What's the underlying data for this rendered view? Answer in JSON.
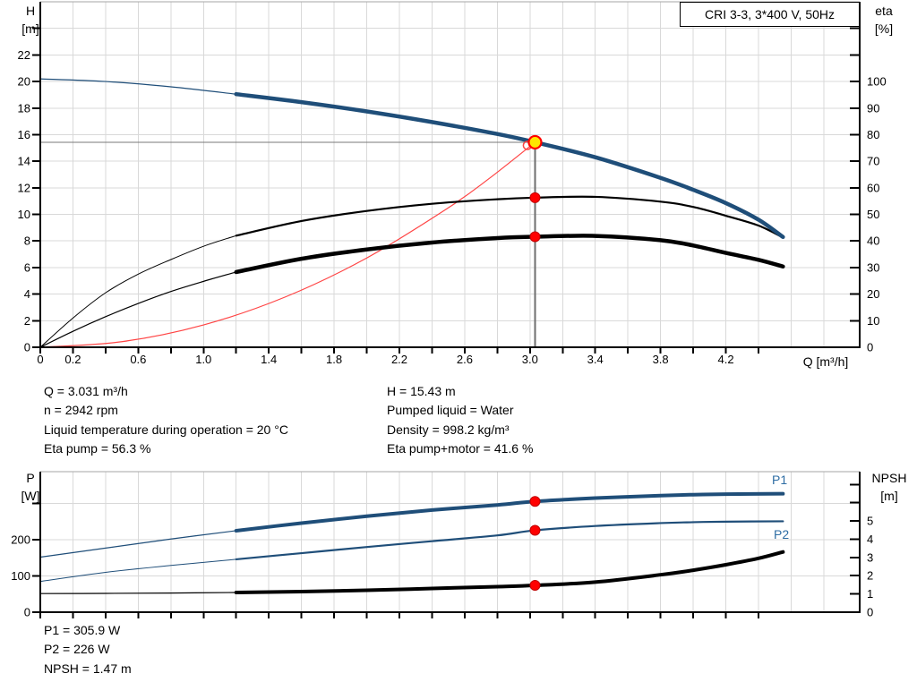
{
  "header": {
    "model_box": "CRI 3-3, 3*400 V, 50Hz"
  },
  "info_top": {
    "left": [
      "Q = 3.031 m³/h",
      "n = 2942 rpm",
      "Liquid temperature during operation = 20 °C",
      "Eta pump = 56.3 %"
    ],
    "right": [
      "H = 15.43 m",
      "Pumped liquid = Water",
      "Density = 998.2 kg/m³",
      "Eta pump+motor = 41.6 %"
    ]
  },
  "info_bottom": [
    "P1 = 305.9 W",
    "P2 = 226 W",
    "NPSH = 1.47 m"
  ],
  "colors": {
    "curve_blue": "#1F4E79",
    "curve_black": "#000000",
    "system_red": "#ff4444",
    "dot_red": "#ff0000",
    "dot_red_rim": "#c00000",
    "dot_yellow": "#ffe600",
    "duty_guides": "#787878",
    "duty_guide_vertical": "#6e6e6e",
    "grid": "#d9d9d9",
    "frame": "#a6a6a6",
    "axis": "#000000",
    "label_blue": "#2e6da4"
  },
  "chart_data": [
    {
      "type": "line",
      "name": "hq-eta-chart",
      "title_box": "CRI 3-3, 3*400 V, 50Hz",
      "x_axis": {
        "label": "Q [m³/h]",
        "min": 0,
        "max": 5.02,
        "ticks": [
          0,
          0.2,
          0.4,
          0.6,
          0.8,
          1.0,
          1.2,
          1.4,
          1.6,
          1.8,
          2.0,
          2.2,
          2.4,
          2.6,
          2.8,
          3.0,
          3.2,
          3.4,
          3.6,
          3.8,
          4.0,
          4.2,
          4.4
        ],
        "grid": [
          0.2,
          0.4,
          0.6,
          0.8,
          1.0,
          1.2,
          1.4,
          1.6,
          1.8,
          2.0,
          2.2,
          2.4,
          2.6,
          2.8,
          3.0,
          3.2,
          3.4,
          3.6,
          3.8,
          4.0,
          4.2,
          4.4,
          4.6,
          4.8
        ],
        "tick_labels": [
          {
            "v": 0,
            "t": "0"
          },
          {
            "v": 0.2,
            "t": "0.2"
          },
          {
            "v": 0.6,
            "t": "0.6"
          },
          {
            "v": 1.0,
            "t": "1.0"
          },
          {
            "v": 1.4,
            "t": "1.4"
          },
          {
            "v": 1.8,
            "t": "1.8"
          },
          {
            "v": 2.2,
            "t": "2.2"
          },
          {
            "v": 2.6,
            "t": "2.6"
          },
          {
            "v": 3.0,
            "t": "3.0"
          },
          {
            "v": 3.4,
            "t": "3.4"
          },
          {
            "v": 3.8,
            "t": "3.8"
          },
          {
            "v": 4.2,
            "t": "4.2"
          }
        ]
      },
      "y_left": {
        "label_lines": [
          "H",
          "[m]"
        ],
        "min": 0,
        "max": 26,
        "ticks": [
          0,
          2,
          4,
          6,
          8,
          10,
          12,
          14,
          16,
          18,
          20,
          22,
          24
        ],
        "labels": [
          0,
          2,
          4,
          6,
          8,
          10,
          12,
          14,
          16,
          18,
          20,
          22
        ],
        "grid": [
          2,
          4,
          6,
          8,
          10,
          12,
          14,
          16,
          18,
          20,
          22,
          24
        ]
      },
      "y_right": {
        "label_lines": [
          "eta",
          "[%]"
        ],
        "min": 0,
        "max": 130,
        "ticks": [
          0,
          10,
          20,
          30,
          40,
          50,
          60,
          70,
          80,
          90,
          100,
          110,
          120
        ],
        "labels": [
          0,
          10,
          20,
          30,
          40,
          50,
          60,
          70,
          80,
          90,
          100
        ]
      },
      "duty_point": {
        "q": 3.031,
        "h": 15.43
      },
      "ghost_point": {
        "q": 2.984,
        "h": 15.19
      },
      "series": [
        {
          "name": "system-curve",
          "unit": "left",
          "color": "#ff4444",
          "width": 1.2,
          "points": [
            [
              0,
              0
            ],
            [
              0.5,
              0.42
            ],
            [
              1.0,
              1.68
            ],
            [
              1.5,
              3.78
            ],
            [
              2.0,
              6.72
            ],
            [
              2.5,
              10.5
            ],
            [
              2.75,
              12.7
            ],
            [
              3.031,
              15.43
            ]
          ]
        },
        {
          "name": "eta-pump-curve",
          "unit": "right",
          "color": "#000000",
          "width": 2.2,
          "thin_width": 1,
          "thin_until": 1.2,
          "dot": true,
          "points": [
            [
              0,
              0
            ],
            [
              0.2,
              11
            ],
            [
              0.4,
              20.5
            ],
            [
              0.6,
              27.5
            ],
            [
              0.8,
              33
            ],
            [
              1.0,
              38
            ],
            [
              1.2,
              42
            ],
            [
              1.6,
              47.5
            ],
            [
              2.0,
              51.3
            ],
            [
              2.4,
              54
            ],
            [
              2.8,
              55.7
            ],
            [
              3.031,
              56.3
            ],
            [
              3.4,
              56.6
            ],
            [
              3.8,
              54.8
            ],
            [
              4.0,
              52.8
            ],
            [
              4.2,
              49.5
            ],
            [
              4.4,
              45.8
            ],
            [
              4.55,
              41.3
            ]
          ]
        },
        {
          "name": "eta-pump-motor-curve",
          "unit": "right",
          "color": "#000000",
          "width": 4.5,
          "thin_width": 1.2,
          "thin_until": 1.2,
          "dot": true,
          "points": [
            [
              0,
              0
            ],
            [
              0.2,
              6
            ],
            [
              0.4,
              11.5
            ],
            [
              0.6,
              16.5
            ],
            [
              0.8,
              21
            ],
            [
              1.0,
              24.8
            ],
            [
              1.2,
              28.3
            ],
            [
              1.6,
              33.3
            ],
            [
              2.0,
              36.8
            ],
            [
              2.4,
              39.4
            ],
            [
              2.8,
              41.1
            ],
            [
              3.031,
              41.6
            ],
            [
              3.4,
              41.9
            ],
            [
              3.8,
              40.3
            ],
            [
              4.0,
              38.3
            ],
            [
              4.2,
              35.5
            ],
            [
              4.4,
              32.9
            ],
            [
              4.55,
              30.4
            ]
          ]
        },
        {
          "name": "head-curve",
          "unit": "left",
          "color": "#1F4E79",
          "width": 4.5,
          "thin_width": 1.2,
          "thin_until": 1.2,
          "points": [
            [
              0,
              20.2
            ],
            [
              0.4,
              20.0
            ],
            [
              0.8,
              19.6
            ],
            [
              1.2,
              19.05
            ],
            [
              1.6,
              18.45
            ],
            [
              2.0,
              17.75
            ],
            [
              2.4,
              16.95
            ],
            [
              2.8,
              16.05
            ],
            [
              3.031,
              15.43
            ],
            [
              3.4,
              14.3
            ],
            [
              3.8,
              12.75
            ],
            [
              4.0,
              11.85
            ],
            [
              4.2,
              10.85
            ],
            [
              4.4,
              9.6
            ],
            [
              4.55,
              8.3
            ]
          ]
        }
      ]
    },
    {
      "type": "line",
      "name": "power-npsh-chart",
      "x_axis": {
        "label": "",
        "min": 0,
        "max": 5.02,
        "ticks": [
          0,
          0.2,
          0.4,
          0.6,
          0.8,
          1.0,
          1.2,
          1.4,
          1.6,
          1.8,
          2.0,
          2.2,
          2.4,
          2.6,
          2.8,
          3.0,
          3.2,
          3.4,
          3.6,
          3.8,
          4.0,
          4.2,
          4.4
        ],
        "grid": [
          0.2,
          0.4,
          0.6,
          0.8,
          1.0,
          1.2,
          1.4,
          1.6,
          1.8,
          2.0,
          2.2,
          2.4,
          2.6,
          2.8,
          3.0,
          3.2,
          3.4,
          3.6,
          3.8,
          4.0,
          4.2,
          4.4,
          4.6,
          4.8
        ],
        "tick_labels": []
      },
      "y_left": {
        "label_lines": [
          "P",
          "[W]"
        ],
        "min": 0,
        "max": 388,
        "ticks": [
          0,
          100,
          200,
          300
        ],
        "labels": [
          0,
          100,
          200
        ],
        "grid": [
          100,
          200,
          300
        ]
      },
      "y_right": {
        "label_lines": [
          "NPSH",
          "[m]"
        ],
        "min": 0,
        "max": 7.7,
        "ticks": [
          0,
          1,
          2,
          3,
          4,
          5,
          6,
          7
        ],
        "labels": [
          0,
          1,
          2,
          3,
          4,
          5
        ]
      },
      "duty_q": 3.031,
      "series": [
        {
          "name": "p1-curve",
          "label": "P1",
          "unit": "left",
          "color": "#1F4E79",
          "width": 4,
          "thin_width": 1.2,
          "thin_until": 1.2,
          "dot": true,
          "points": [
            [
              0,
              152
            ],
            [
              0.4,
              177
            ],
            [
              0.8,
              202
            ],
            [
              1.2,
              225
            ],
            [
              1.6,
              246
            ],
            [
              2.0,
              265
            ],
            [
              2.4,
              282
            ],
            [
              2.8,
              296
            ],
            [
              3.031,
              305.9
            ],
            [
              3.4,
              315
            ],
            [
              3.8,
              322
            ],
            [
              4.0,
              324.5
            ],
            [
              4.2,
              326
            ],
            [
              4.55,
              327
            ]
          ]
        },
        {
          "name": "p2-curve",
          "label": "P2",
          "unit": "left",
          "color": "#1F4E79",
          "width": 2.2,
          "thin_width": 1,
          "thin_until": 1.2,
          "dot": true,
          "points": [
            [
              0,
              85
            ],
            [
              0.4,
              110
            ],
            [
              0.8,
              129
            ],
            [
              1.2,
              146
            ],
            [
              1.6,
              163
            ],
            [
              2.0,
              180
            ],
            [
              2.4,
              196
            ],
            [
              2.8,
              212
            ],
            [
              3.031,
              226
            ],
            [
              3.4,
              238
            ],
            [
              3.8,
              246
            ],
            [
              4.0,
              248.5
            ],
            [
              4.2,
              250
            ],
            [
              4.55,
              251
            ]
          ]
        },
        {
          "name": "npsh-curve",
          "label": "NPSH",
          "unit": "right",
          "color": "#000000",
          "width": 4,
          "thin_width": 1.2,
          "thin_until": 1.2,
          "dot": true,
          "points": [
            [
              0,
              1.02
            ],
            [
              0.4,
              1.03
            ],
            [
              0.8,
              1.05
            ],
            [
              1.2,
              1.08
            ],
            [
              1.6,
              1.13
            ],
            [
              2.0,
              1.2
            ],
            [
              2.4,
              1.3
            ],
            [
              2.8,
              1.4
            ],
            [
              3.031,
              1.47
            ],
            [
              3.4,
              1.65
            ],
            [
              3.8,
              2.05
            ],
            [
              4.0,
              2.3
            ],
            [
              4.2,
              2.6
            ],
            [
              4.4,
              2.95
            ],
            [
              4.55,
              3.3
            ]
          ]
        }
      ]
    }
  ]
}
